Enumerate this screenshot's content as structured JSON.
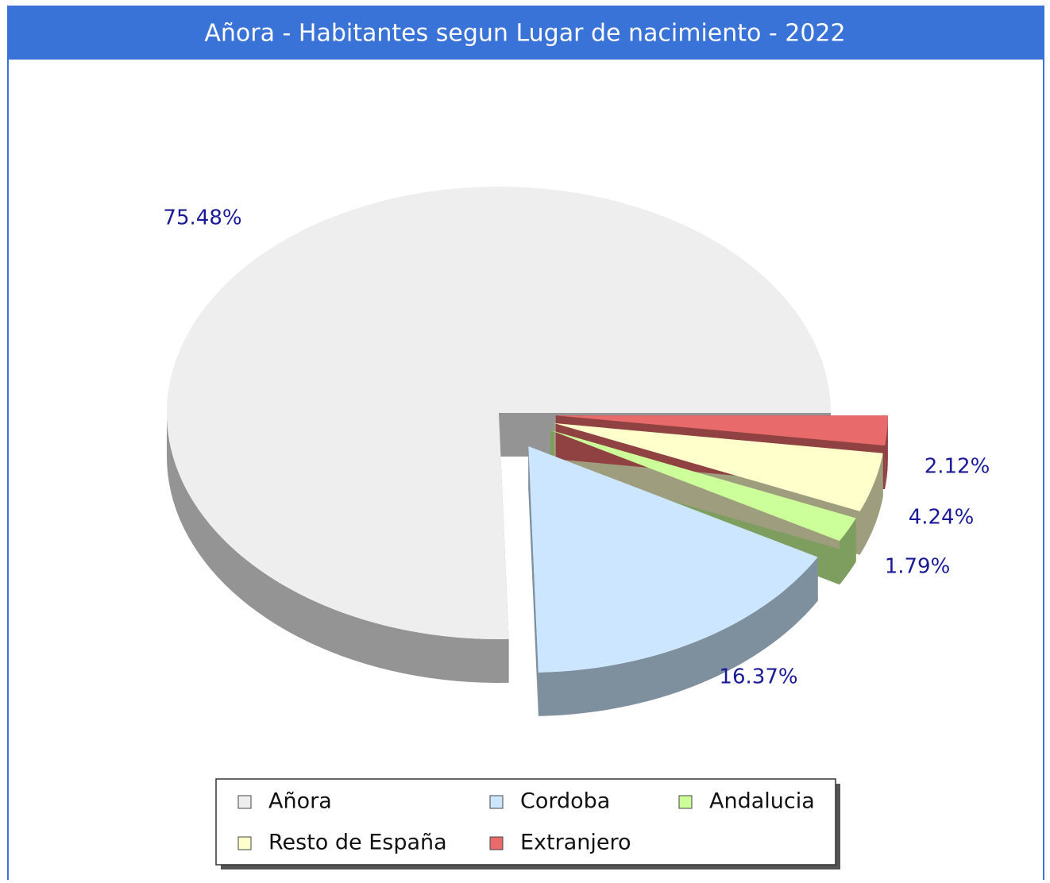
{
  "chart_data": {
    "type": "pie",
    "title": "Añora - Habitantes segun Lugar de nacimiento - 2022",
    "categories": [
      "Añora",
      "Cordoba",
      "Andalucia",
      "Resto de España",
      "Extranjero"
    ],
    "values": [
      75.48,
      16.37,
      1.79,
      4.24,
      2.12
    ],
    "value_labels": [
      "75.48%",
      "16.37%",
      "1.79%",
      "4.24%",
      "2.12%"
    ],
    "colors": [
      "#eeeeee",
      "#cce6ff",
      "#ccff99",
      "#ffffcc",
      "#e86a6a"
    ],
    "legend": "bottom"
  }
}
